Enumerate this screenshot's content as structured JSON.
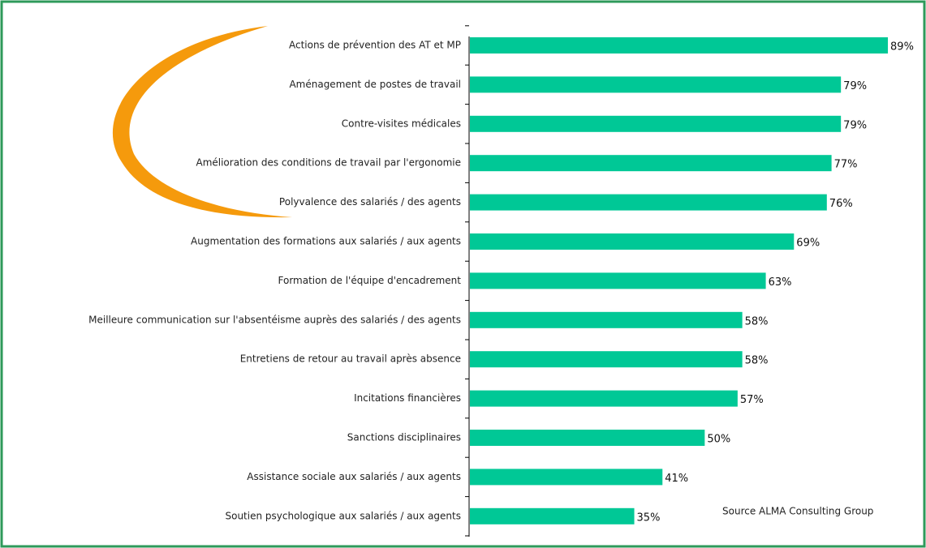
{
  "chart_data": {
    "type": "bar",
    "orientation": "horizontal",
    "categories": [
      "Actions de prévention des AT et MP",
      "Aménagement de postes de travail",
      "Contre-visites médicales",
      "Amélioration des conditions de travail par l'ergonomie",
      "Polyvalence des salariés / des agents",
      "Augmentation des formations aux salariés / aux agents",
      "Formation de l'équipe d'encadrement",
      "Meilleure communication sur l'absentéisme auprès des salariés / des agents",
      "Entretiens de retour au travail après absence",
      "Incitations financières",
      "Sanctions disciplinaires",
      "Assistance sociale aux salariés / aux agents",
      "Soutien psychologique aux salariés / aux agents"
    ],
    "values": [
      89,
      79,
      79,
      77,
      76,
      69,
      63,
      58,
      58,
      57,
      50,
      41,
      35
    ],
    "value_labels": [
      "89%",
      "79%",
      "79%",
      "77%",
      "76%",
      "69%",
      "63%",
      "58%",
      "58%",
      "57%",
      "50%",
      "41%",
      "35%"
    ],
    "color": "#00c896",
    "source": "Source ALMA Consulting Group"
  }
}
